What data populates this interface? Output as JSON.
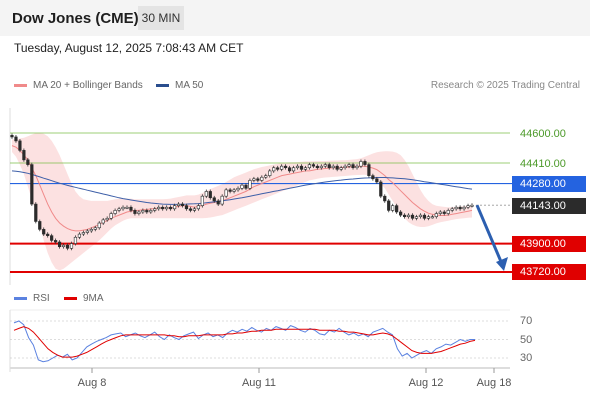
{
  "header": {
    "title": "Dow Jones (CME)",
    "timeframe": "30 MIN"
  },
  "datetime": "Tuesday, August 12, 2025 7:08:43 AM CET",
  "legend": {
    "bollinger": "MA 20 + Bollinger Bands",
    "ma50": "MA 50",
    "bollinger_color": "#f08a8a",
    "ma50_color": "#2a4e8e"
  },
  "credit": "Research © 2025 Trading Central",
  "rsi_legend": {
    "rsi": "RSI",
    "ma9": "9MA",
    "rsi_color": "#5b82e0",
    "ma9_color": "#e00000"
  },
  "colors": {
    "resistance": "#7cbf4a",
    "pivot": "#2463e0",
    "support": "#e00000",
    "current": "#2b2b2b",
    "arrow": "#2c5fb0"
  },
  "chart_data": [
    {
      "type": "candlestick",
      "yaxis_labels": [
        "44600.00",
        "44410.00",
        "44280.00",
        "44143.00",
        "43900.00",
        "43720.00"
      ],
      "levels": [
        {
          "name": "resistance-2",
          "value": 44600.0,
          "label": "44600.00"
        },
        {
          "name": "resistance-1",
          "value": 44410.0,
          "label": "44410.00"
        },
        {
          "name": "pivot",
          "value": 44280.0,
          "label": "44280.00"
        },
        {
          "name": "last-price",
          "value": 44143.0,
          "label": "44143.00"
        },
        {
          "name": "support-1",
          "value": 43900.0,
          "label": "43900.00"
        },
        {
          "name": "support-2",
          "value": 43720.0,
          "label": "43720.00"
        }
      ],
      "x_ticks": [
        "Aug 8",
        "Aug 11",
        "Aug 12",
        "Aug 18"
      ],
      "close": [
        44575,
        44550,
        44490,
        44430,
        44400,
        44150,
        44040,
        43990,
        43960,
        43950,
        43920,
        43910,
        43880,
        43890,
        43870,
        43900,
        43940,
        43960,
        43970,
        43980,
        43990,
        44000,
        44030,
        44050,
        44060,
        44090,
        44110,
        44120,
        44130,
        44130,
        44110,
        44090,
        44100,
        44110,
        44100,
        44110,
        44120,
        44130,
        44120,
        44130,
        44120,
        44140,
        44150,
        44140,
        44120,
        44110,
        44120,
        44140,
        44200,
        44230,
        44190,
        44170,
        44150,
        44200,
        44240,
        44230,
        44240,
        44250,
        44270,
        44250,
        44300,
        44310,
        44300,
        44320,
        44330,
        44360,
        44380,
        44370,
        44390,
        44380,
        44360,
        44380,
        44390,
        44370,
        44380,
        44400,
        44390,
        44380,
        44390,
        44400,
        44380,
        44390,
        44370,
        44380,
        44390,
        44400,
        44380,
        44390,
        44420,
        44400,
        44330,
        44310,
        44290,
        44200,
        44170,
        44110,
        44140,
        44100,
        44080,
        44070,
        44080,
        44060,
        44070,
        44080,
        44060,
        44070,
        44070,
        44090,
        44100,
        44090,
        44110,
        44120,
        44130,
        44120,
        44130,
        44140,
        44143
      ],
      "ma20": [
        44520,
        44510,
        44490,
        44460,
        44430,
        44380,
        44330,
        44270,
        44210,
        44150,
        44100,
        44060,
        44030,
        44010,
        43995,
        43985,
        43980,
        43980,
        43985,
        43990,
        44000,
        44010,
        44020,
        44035,
        44045,
        44060,
        44070,
        44080,
        44090,
        44100,
        44105,
        44110,
        44110,
        44115,
        44115,
        44120,
        44120,
        44125,
        44125,
        44125,
        44125,
        44130,
        44135,
        44140,
        44140,
        44135,
        44130,
        44135,
        44140,
        44150,
        44155,
        44160,
        44165,
        44170,
        44180,
        44190,
        44200,
        44210,
        44220,
        44230,
        44245,
        44260,
        44270,
        44280,
        44290,
        44300,
        44310,
        44320,
        44330,
        44335,
        44340,
        44345,
        44350,
        44355,
        44360,
        44360,
        44365,
        44370,
        44372,
        44375,
        44378,
        44380,
        44380,
        44380,
        44382,
        44385,
        44386,
        44388,
        44390,
        44390,
        44385,
        44378,
        44368,
        44350,
        44330,
        44305,
        44285,
        44260,
        44235,
        44210,
        44185,
        44160,
        44140,
        44120,
        44105,
        44092,
        44085,
        44080,
        44078,
        44078,
        44080,
        44085,
        44090,
        44095,
        44100,
        44105,
        44110
      ],
      "upper_band": [
        44560,
        44560,
        44565,
        44570,
        44580,
        44590,
        44600,
        44600,
        44595,
        44580,
        44550,
        44510,
        44460,
        44400,
        44340,
        44280,
        44230,
        44200,
        44180,
        44175,
        44170,
        44170,
        44170,
        44170,
        44170,
        44175,
        44180,
        44185,
        44185,
        44185,
        44185,
        44180,
        44180,
        44180,
        44180,
        44180,
        44180,
        44180,
        44180,
        44182,
        44185,
        44190,
        44195,
        44200,
        44205,
        44205,
        44205,
        44210,
        44220,
        44235,
        44245,
        44255,
        44265,
        44275,
        44290,
        44305,
        44320,
        44330,
        44340,
        44350,
        44360,
        44370,
        44378,
        44385,
        44390,
        44395,
        44400,
        44405,
        44410,
        44412,
        44414,
        44415,
        44416,
        44418,
        44420,
        44420,
        44421,
        44422,
        44422,
        44423,
        44424,
        44425,
        44426,
        44427,
        44428,
        44430,
        44432,
        44435,
        44440,
        44450,
        44460,
        44470,
        44478,
        44482,
        44484,
        44485,
        44482,
        44475,
        44460,
        44430,
        44390,
        44340,
        44290,
        44240,
        44200,
        44170,
        44150,
        44140,
        44135,
        44132,
        44130,
        44131,
        44132,
        44134,
        44136,
        44138,
        44140
      ],
      "lower_band": [
        44480,
        44450,
        44400,
        44340,
        44260,
        44180,
        44100,
        44010,
        43920,
        43840,
        43780,
        43740,
        43730,
        43740,
        43760,
        43780,
        43800,
        43820,
        43840,
        43860,
        43880,
        43900,
        43920,
        43945,
        43970,
        43995,
        44015,
        44030,
        44045,
        44055,
        44060,
        44060,
        44060,
        44060,
        44060,
        44060,
        44060,
        44060,
        44060,
        44060,
        44060,
        44060,
        44060,
        44060,
        44060,
        44060,
        44060,
        44060,
        44060,
        44062,
        44065,
        44070,
        44075,
        44080,
        44090,
        44100,
        44110,
        44120,
        44130,
        44140,
        44150,
        44160,
        44170,
        44180,
        44190,
        44200,
        44210,
        44220,
        44230,
        44240,
        44250,
        44260,
        44270,
        44280,
        44290,
        44300,
        44305,
        44310,
        44315,
        44318,
        44320,
        44322,
        44324,
        44326,
        44328,
        44330,
        44332,
        44334,
        44335,
        44336,
        44330,
        44320,
        44300,
        44280,
        44250,
        44210,
        44170,
        44130,
        44095,
        44060,
        44035,
        44020,
        44010,
        44005,
        44005,
        44010,
        44018,
        44028,
        44035,
        44040,
        44045,
        44050,
        44055,
        44058,
        44060,
        44063,
        44065
      ],
      "ma50": [
        44360,
        44358,
        44355,
        44350,
        44345,
        44338,
        44330,
        44322,
        44314,
        44306,
        44298,
        44290,
        44282,
        44275,
        44268,
        44262,
        44256,
        44250,
        44244,
        44238,
        44232,
        44226,
        44220,
        44214,
        44208,
        44202,
        44196,
        44190,
        44185,
        44180,
        44176,
        44172,
        44168,
        44164,
        44160,
        44157,
        44154,
        44152,
        44150,
        44149,
        44148,
        44148,
        44148,
        44149,
        44150,
        44151,
        44152,
        44153,
        44155,
        44158,
        44161,
        44164,
        44167,
        44170,
        44174,
        44178,
        44182,
        44186,
        44190,
        44195,
        44200,
        44205,
        44210,
        44215,
        44220,
        44225,
        44230,
        44235,
        44240,
        44245,
        44250,
        44255,
        44260,
        44265,
        44270,
        44274,
        44278,
        44282,
        44286,
        44290,
        44293,
        44296,
        44299,
        44302,
        44305,
        44307,
        44309,
        44311,
        44313,
        44315,
        44316,
        44317,
        44318,
        44318,
        44318,
        44317,
        44316,
        44314,
        44312,
        44310,
        44307,
        44304,
        44300,
        44296,
        44292,
        44288,
        44284,
        44280,
        44276,
        44272,
        44268,
        44264,
        44260,
        44256,
        44252,
        44248,
        44245
      ]
    },
    {
      "type": "line",
      "name": "RSI",
      "yaxis_labels": [
        "70",
        "50",
        "30"
      ],
      "ylim": [
        20,
        80
      ],
      "series": [
        {
          "name": "RSI",
          "values": [
            68,
            70,
            66,
            52,
            44,
            28,
            26,
            27,
            30,
            33,
            31,
            34,
            28,
            30,
            36,
            42,
            45,
            48,
            50,
            52,
            55,
            56,
            57,
            53,
            55,
            57,
            54,
            52,
            55,
            58,
            53,
            50,
            55,
            52,
            50,
            54,
            56,
            58,
            51,
            55,
            57,
            53,
            55,
            52,
            57,
            60,
            58,
            61,
            59,
            63,
            60,
            58,
            62,
            60,
            64,
            62,
            60,
            65,
            63,
            60,
            58,
            62,
            60,
            56,
            55,
            60,
            58,
            62,
            58,
            55,
            57,
            54,
            56,
            53,
            58,
            60,
            62,
            58,
            55,
            40,
            32,
            35,
            30,
            33,
            36,
            38,
            35,
            40,
            42,
            45,
            44,
            47,
            50,
            48,
            50,
            50
          ]
        },
        {
          "name": "9MA",
          "values": [
            60,
            62,
            64,
            62,
            58,
            52,
            46,
            40,
            36,
            33,
            31,
            31,
            31,
            32,
            34,
            36,
            39,
            42,
            45,
            48,
            50,
            52,
            54,
            55,
            55,
            55,
            55,
            55,
            55,
            55,
            55,
            55,
            54,
            54,
            53,
            53,
            54,
            54,
            54,
            55,
            55,
            55,
            55,
            55,
            56,
            56,
            57,
            57,
            58,
            59,
            59,
            60,
            60,
            60,
            61,
            61,
            61,
            61,
            61,
            61,
            61,
            61,
            61,
            60,
            60,
            60,
            60,
            59,
            59,
            58,
            58,
            57,
            56,
            55,
            55,
            56,
            57,
            56,
            54,
            50,
            46,
            42,
            38,
            36,
            35,
            35,
            35,
            36,
            37,
            39,
            41,
            43,
            45,
            46,
            48,
            49
          ]
        }
      ]
    }
  ]
}
